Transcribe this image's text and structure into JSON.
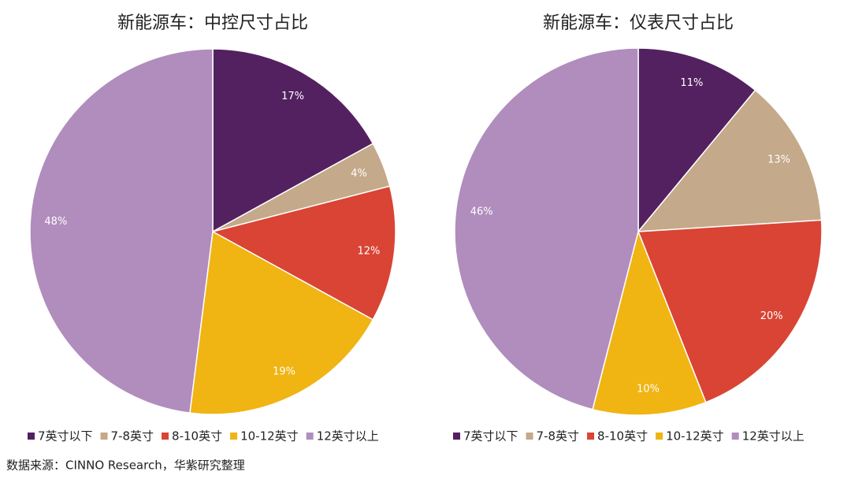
{
  "chart_data": [
    {
      "type": "pie",
      "title": "新能源车：中控尺寸占比",
      "categories": [
        "7英寸以下",
        "7-8英寸",
        "8-10英寸",
        "10-12英寸",
        "12英寸以上"
      ],
      "values": [
        17,
        4,
        12,
        19,
        48
      ],
      "value_labels": [
        "17%",
        "4%",
        "12%",
        "19%",
        "48%"
      ],
      "colors": [
        "#532160",
        "#c4a98a",
        "#d94434",
        "#f0b413",
        "#b08dbd"
      ],
      "legend": "bottom"
    },
    {
      "type": "pie",
      "title": "新能源车：仪表尺寸占比",
      "categories": [
        "7英寸以下",
        "7-8英寸",
        "8-10英寸",
        "10-12英寸",
        "12英寸以上"
      ],
      "values": [
        11,
        13,
        20,
        10,
        46
      ],
      "value_labels": [
        "11%",
        "13%",
        "20%",
        "10%",
        "46%"
      ],
      "colors": [
        "#532160",
        "#c4a98a",
        "#d94434",
        "#f0b413",
        "#b08dbd"
      ],
      "legend": "bottom"
    }
  ],
  "source": "数据来源：CINNO Research，华紫研究整理"
}
